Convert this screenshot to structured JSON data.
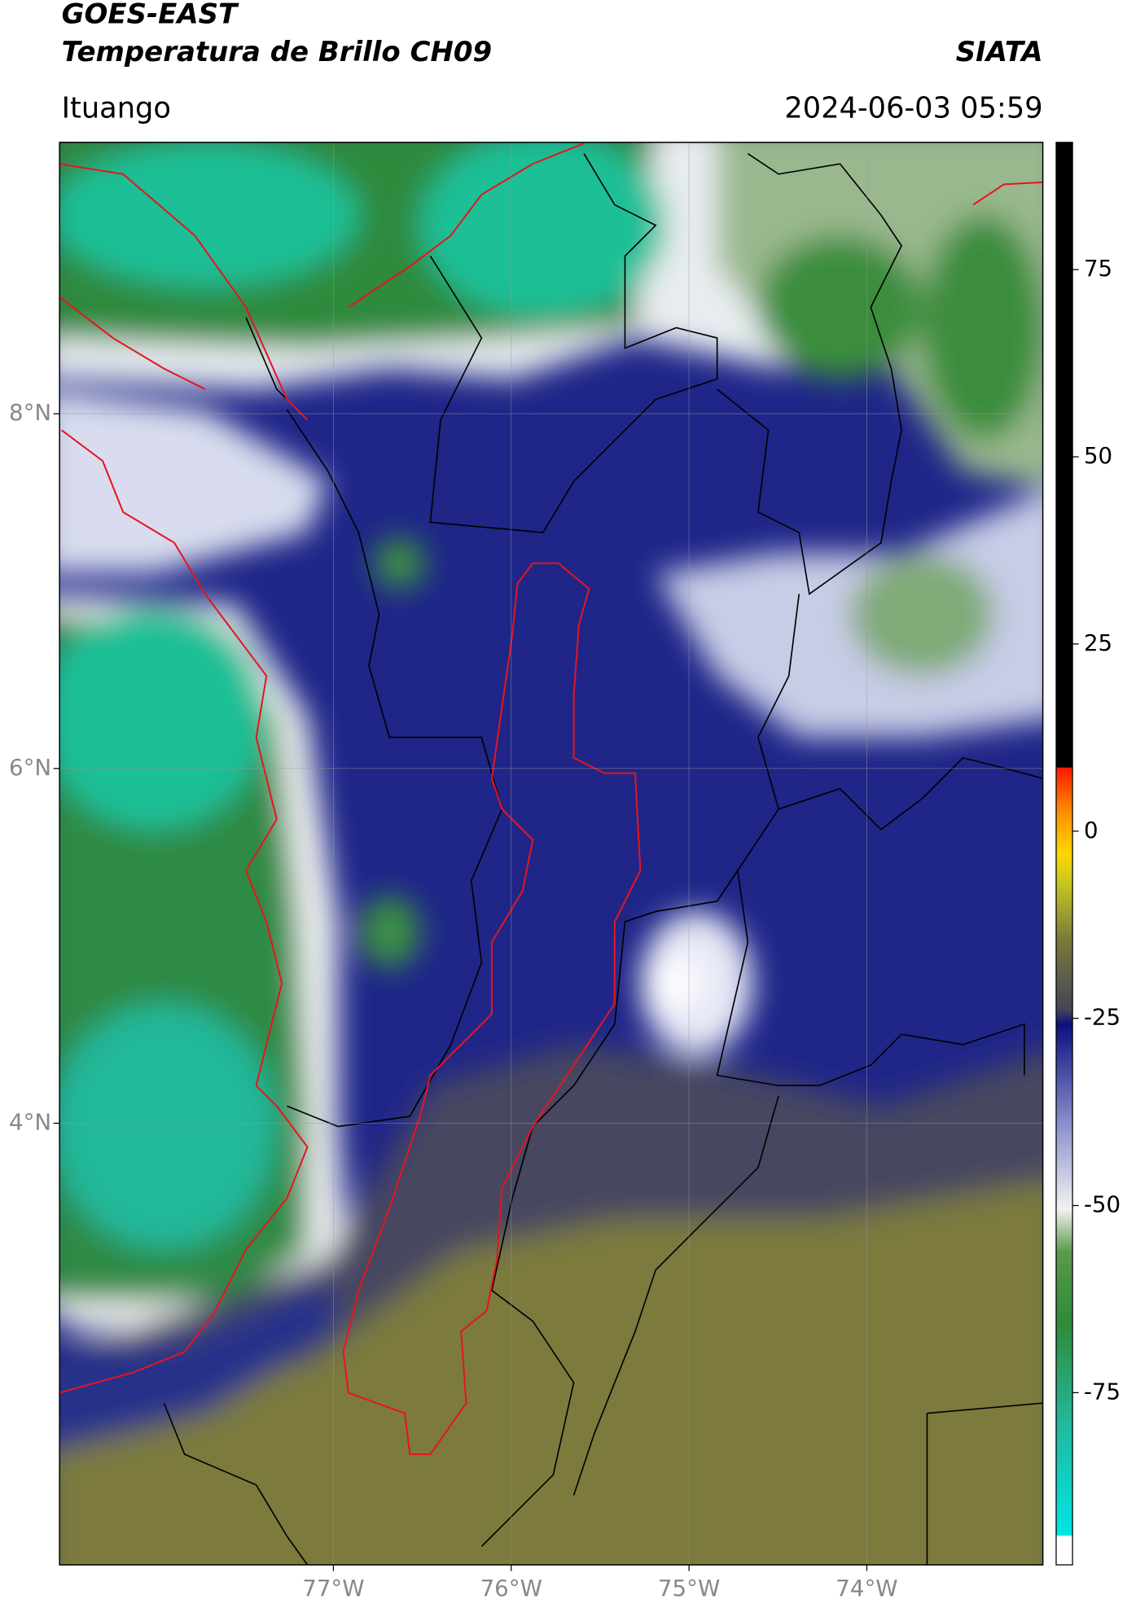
{
  "header": {
    "title_line1": "GOES-EAST",
    "title_line2": "Temperatura de Brillo CH09",
    "org": "SIATA",
    "location": "Ituango",
    "datetime": "2024-06-03 05:59"
  },
  "map": {
    "xlim": [
      -78.54,
      -73.01
    ],
    "ylim": [
      1.51,
      9.53
    ],
    "xticks": [
      {
        "value": -77,
        "label": "77°W"
      },
      {
        "value": -76,
        "label": "76°W"
      },
      {
        "value": -75,
        "label": "75°W"
      },
      {
        "value": -74,
        "label": "74°W"
      }
    ],
    "yticks": [
      {
        "value": 4,
        "label": "4°N"
      },
      {
        "value": 6,
        "label": "6°N"
      },
      {
        "value": 8,
        "label": "8°N"
      }
    ],
    "grid": true
  },
  "colorbar": {
    "lim": [
      -98,
      92
    ],
    "ticks": [
      -75,
      -50,
      -25,
      0,
      25,
      50,
      75
    ]
  }
}
